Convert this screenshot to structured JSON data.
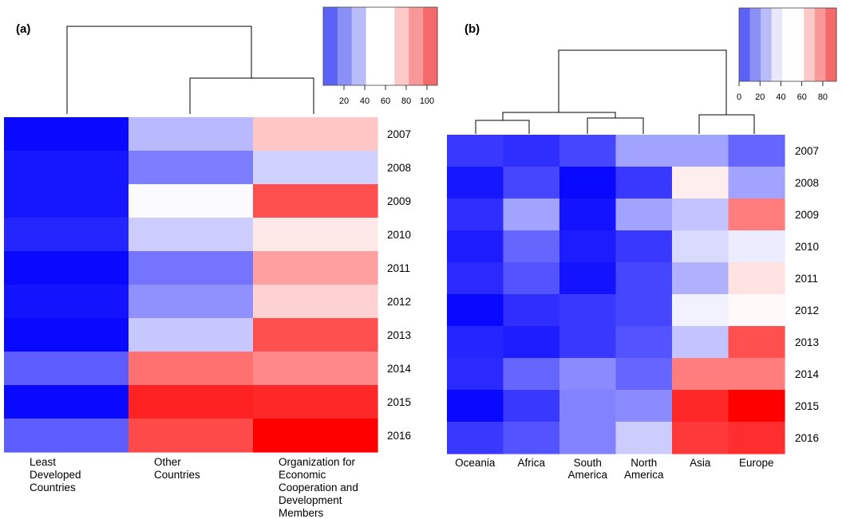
{
  "chart_data": [
    {
      "type": "heatmap",
      "panel_label": "(a)",
      "columns": [
        "Least Developed Countries",
        "Other Countries",
        "Organization for Economic Cooperation and Development Members"
      ],
      "column_label_lines": [
        [
          "Least",
          "Developed",
          "Countries"
        ],
        [
          "Other",
          "Countries"
        ],
        [
          "Organization for",
          "Economic",
          "Cooperation and",
          "Development",
          "Members"
        ]
      ],
      "rows": [
        "2007",
        "2008",
        "2009",
        "2010",
        "2011",
        "2012",
        "2013",
        "2014",
        "2015",
        "2016"
      ],
      "values": [
        [
          2,
          40,
          65
        ],
        [
          5,
          27,
          45
        ],
        [
          5,
          54,
          86
        ],
        [
          8,
          44,
          59
        ],
        [
          2,
          25,
          72
        ],
        [
          4,
          31,
          63
        ],
        [
          2,
          43,
          86
        ],
        [
          20,
          80,
          76
        ],
        [
          2,
          94,
          93
        ],
        [
          20,
          87,
          100
        ]
      ],
      "scale": {
        "min": 0,
        "max": 110,
        "ticks": [
          20,
          40,
          60,
          80,
          100
        ],
        "colors": [
          "#5c62f5",
          "#8a90f6",
          "#b8bcf8",
          "#ffffff",
          "#ffffff",
          "#fcc8c8",
          "#f89898",
          "#f46a6a"
        ]
      }
    },
    {
      "type": "heatmap",
      "panel_label": "(b)",
      "columns": [
        "Oceania",
        "Africa",
        "South America",
        "North America",
        "Asia",
        "Europe"
      ],
      "column_label_lines": [
        [
          "Oceania"
        ],
        [
          "Africa"
        ],
        [
          "South",
          "America"
        ],
        [
          "North",
          "America"
        ],
        [
          "Asia"
        ],
        [
          "Europe"
        ]
      ],
      "rows": [
        "2007",
        "2008",
        "2009",
        "2010",
        "2011",
        "2012",
        "2013",
        "2014",
        "2015",
        "2016"
      ],
      "values": [
        [
          12,
          10,
          15,
          35,
          35,
          22
        ],
        [
          5,
          15,
          2,
          12,
          58,
          35
        ],
        [
          10,
          35,
          4,
          35,
          42,
          78
        ],
        [
          6,
          22,
          6,
          12,
          47,
          51
        ],
        [
          9,
          18,
          4,
          15,
          38,
          60
        ],
        [
          2,
          10,
          12,
          15,
          52,
          56
        ],
        [
          8,
          6,
          12,
          18,
          42,
          86
        ],
        [
          9,
          22,
          30,
          22,
          78,
          78
        ],
        [
          2,
          12,
          28,
          30,
          93,
          100
        ],
        [
          12,
          18,
          28,
          44,
          90,
          92
        ]
      ],
      "scale": {
        "min": 0,
        "max": 93,
        "ticks": [
          0,
          20,
          40,
          60,
          80
        ],
        "colors": [
          "#5c62f5",
          "#8a90f6",
          "#b8bcf8",
          "#e8e8fc",
          "#ffffff",
          "#ffffff",
          "#fcc8c8",
          "#f89898",
          "#f46a6a"
        ]
      }
    }
  ]
}
